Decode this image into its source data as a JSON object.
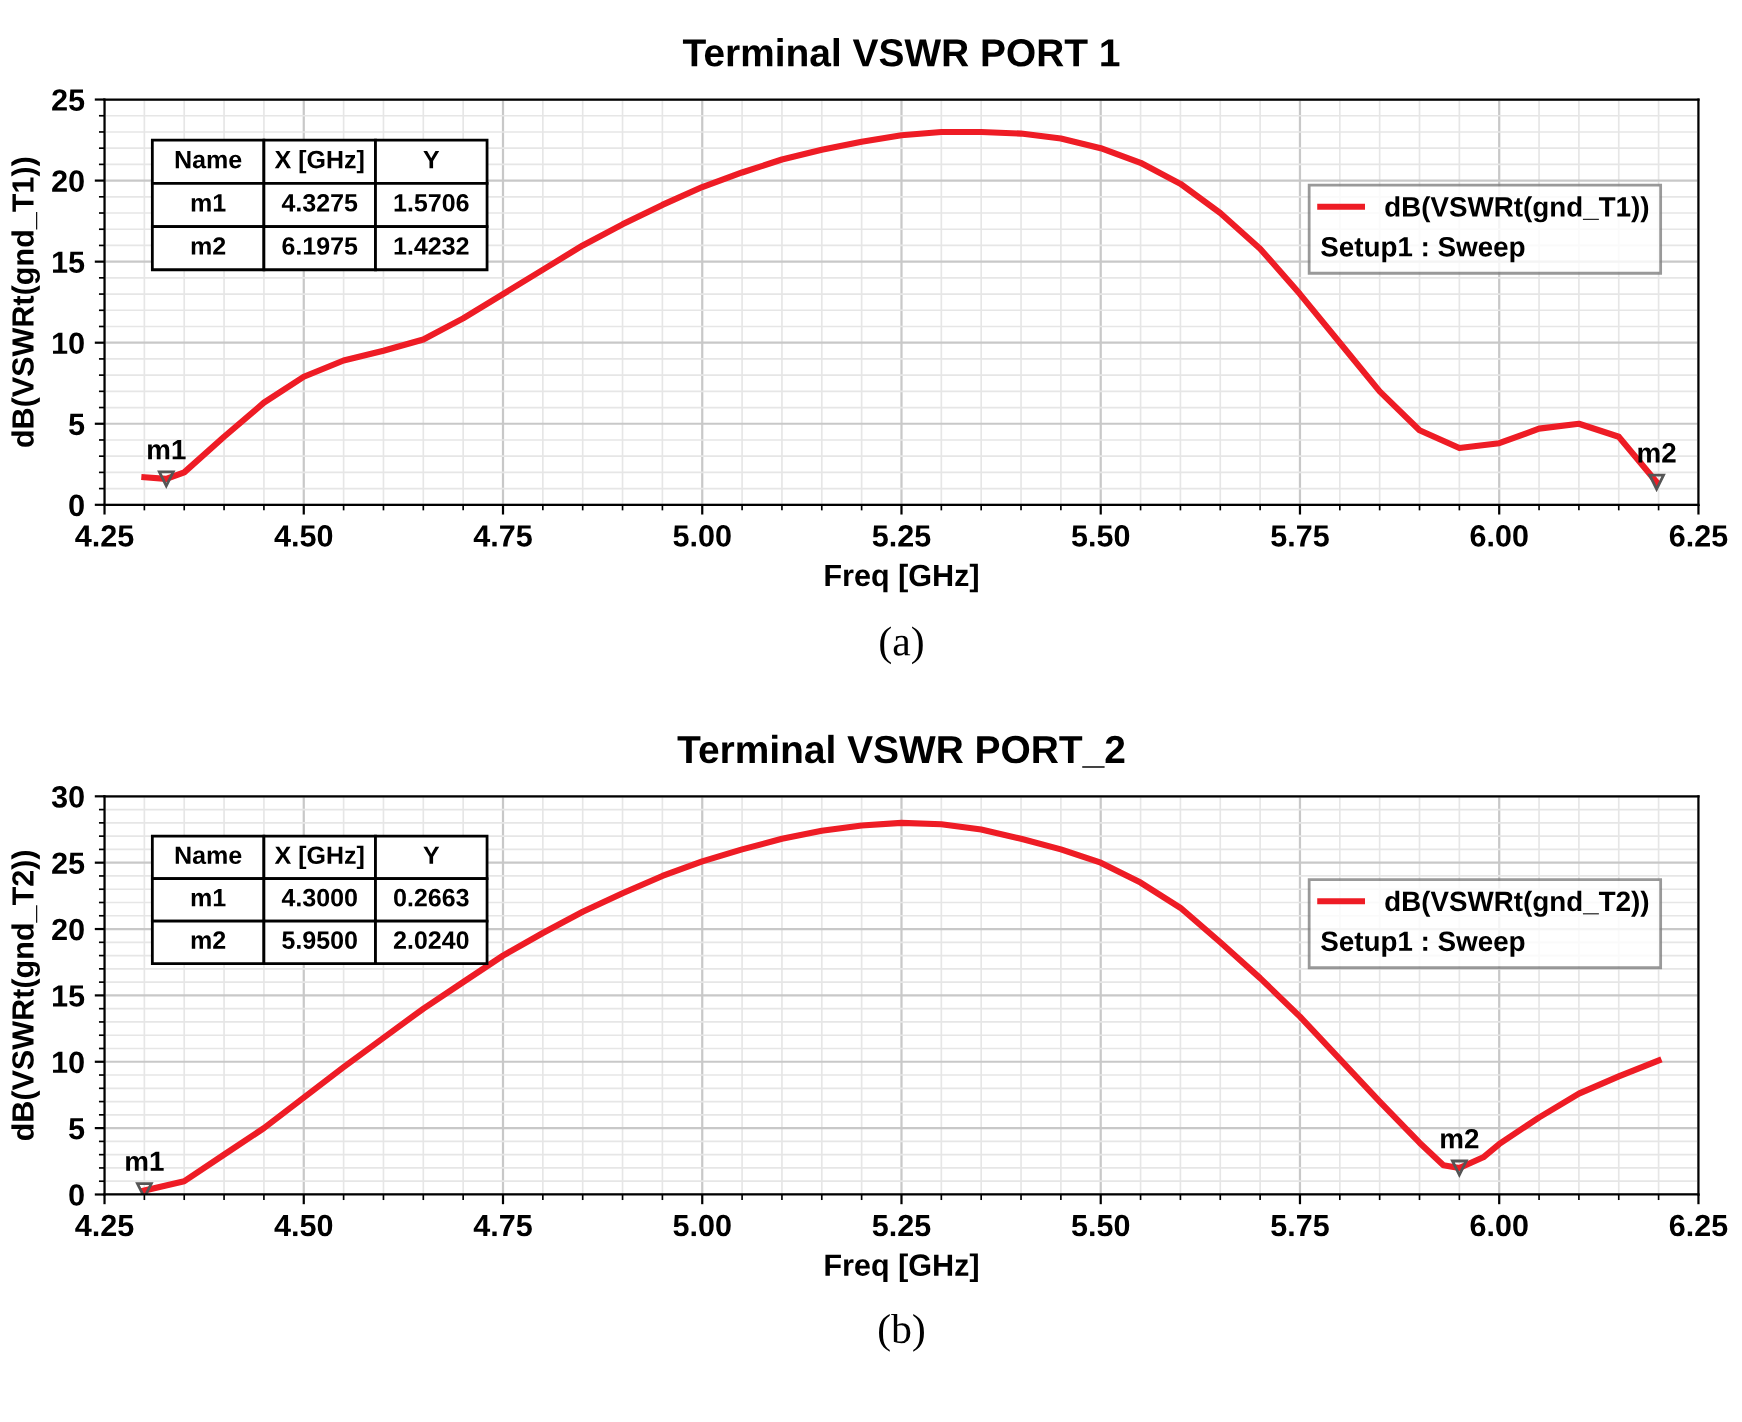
{
  "chart_data": [
    {
      "type": "line",
      "title": "Terminal VSWR PORT 1",
      "xlabel": "Freq [GHz]",
      "ylabel": "dB(VSWRt(gnd_T1))",
      "legend_title": "Setup1 : Sweep",
      "series": [
        {
          "name": "dB(VSWRt(gnd_T1))",
          "color": "#ee1c25",
          "x": [
            4.3,
            4.3275,
            4.35,
            4.4,
            4.45,
            4.5,
            4.55,
            4.6,
            4.65,
            4.7,
            4.75,
            4.8,
            4.85,
            4.9,
            4.95,
            5.0,
            5.05,
            5.1,
            5.15,
            5.2,
            5.25,
            5.3,
            5.35,
            5.4,
            5.45,
            5.5,
            5.55,
            5.6,
            5.65,
            5.7,
            5.75,
            5.8,
            5.85,
            5.9,
            5.95,
            6.0,
            6.05,
            6.1,
            6.15,
            6.1975
          ],
          "values": [
            1.7,
            1.6,
            2.0,
            4.2,
            6.3,
            7.9,
            8.9,
            9.5,
            10.2,
            11.5,
            13.0,
            14.5,
            16.0,
            17.3,
            18.5,
            19.6,
            20.5,
            21.3,
            21.9,
            22.4,
            22.8,
            23.0,
            23.0,
            22.9,
            22.6,
            22.0,
            21.1,
            19.8,
            18.0,
            15.8,
            13.0,
            10.0,
            7.0,
            4.6,
            3.5,
            3.8,
            4.7,
            5.0,
            4.2,
            1.4
          ]
        }
      ],
      "annotations": [
        {
          "text": "m1",
          "x": 4.3275,
          "y": 1.6
        },
        {
          "text": "m2",
          "x": 6.1975,
          "y": 1.4
        },
        "Name",
        "X [GHz]",
        "Y",
        "m1",
        "4.3275",
        "1.5706",
        "m2",
        "6.1975",
        "1.4232",
        "(a)"
      ],
      "xlim": [
        4.25,
        6.25
      ],
      "xticks": [
        {
          "value": 4.25,
          "label": "4.25"
        },
        {
          "value": 4.5,
          "label": "4.50"
        },
        {
          "value": 4.75,
          "label": "4.75"
        },
        {
          "value": 5.0,
          "label": "5.00"
        },
        {
          "value": 5.25,
          "label": "5.25"
        },
        {
          "value": 5.5,
          "label": "5.50"
        },
        {
          "value": 5.75,
          "label": "5.75"
        },
        {
          "value": 6.0,
          "label": "6.00"
        },
        {
          "value": 6.25,
          "label": "6.25"
        }
      ],
      "ylim": [
        0,
        25
      ],
      "yticks": [
        0,
        5,
        10,
        15,
        20,
        25
      ],
      "grid": true,
      "legend": "right",
      "marker": "none",
      "line_style": "solid"
    },
    {
      "type": "line",
      "title": "Terminal VSWR PORT_2",
      "xlabel": "Freq [GHz]",
      "ylabel": "dB(VSWRt(gnd_T2))",
      "legend_title": "Setup1 : Sweep",
      "series": [
        {
          "name": "dB(VSWRt(gnd_T2))",
          "color": "#ee1c25",
          "x": [
            4.3,
            4.35,
            4.4,
            4.45,
            4.5,
            4.55,
            4.6,
            4.65,
            4.7,
            4.75,
            4.8,
            4.85,
            4.9,
            4.95,
            5.0,
            5.05,
            5.1,
            5.15,
            5.2,
            5.25,
            5.3,
            5.35,
            5.4,
            5.45,
            5.5,
            5.55,
            5.6,
            5.65,
            5.7,
            5.75,
            5.8,
            5.85,
            5.9,
            5.93,
            5.95,
            5.98,
            6.0,
            6.05,
            6.1,
            6.15,
            6.2
          ],
          "values": [
            0.3,
            1.0,
            3.0,
            5.0,
            7.3,
            9.6,
            11.8,
            14.0,
            16.0,
            18.0,
            19.7,
            21.3,
            22.7,
            24.0,
            25.1,
            26.0,
            26.8,
            27.4,
            27.8,
            28.0,
            27.9,
            27.5,
            26.8,
            26.0,
            25.0,
            23.5,
            21.6,
            19.0,
            16.3,
            13.4,
            10.2,
            7.0,
            3.9,
            2.2,
            2.0,
            2.8,
            3.8,
            5.8,
            7.6,
            8.9,
            10.1
          ]
        }
      ],
      "annotations": [
        {
          "text": "m1",
          "x": 4.3,
          "y": 0.3
        },
        {
          "text": "m2",
          "x": 5.95,
          "y": 2.0
        },
        "Name",
        "X [GHz]",
        "Y",
        "m1",
        "4.3000",
        "0.2663",
        "m2",
        "5.9500",
        "2.0240",
        "(b)"
      ],
      "xlim": [
        4.25,
        6.25
      ],
      "xticks": [
        {
          "value": 4.25,
          "label": "4.25"
        },
        {
          "value": 4.5,
          "label": "4.50"
        },
        {
          "value": 4.75,
          "label": "4.75"
        },
        {
          "value": 5.0,
          "label": "5.00"
        },
        {
          "value": 5.25,
          "label": "5.25"
        },
        {
          "value": 5.5,
          "label": "5.50"
        },
        {
          "value": 5.75,
          "label": "5.75"
        },
        {
          "value": 6.0,
          "label": "6.00"
        },
        {
          "value": 6.25,
          "label": "6.25"
        }
      ],
      "ylim": [
        0,
        30
      ],
      "yticks": [
        0,
        5,
        10,
        15,
        20,
        25,
        30
      ],
      "grid": true,
      "legend": "right",
      "marker": "none",
      "line_style": "solid"
    }
  ]
}
